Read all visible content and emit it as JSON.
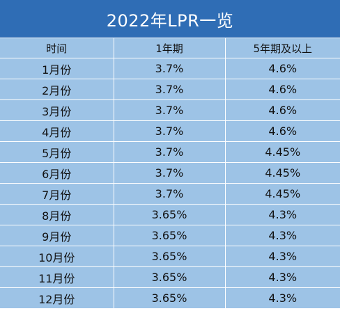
{
  "title": "2022年LPR一览",
  "headers": [
    "时间",
    "1年期",
    "5年期及以上"
  ],
  "rows": [
    [
      "1月份",
      "3.7%",
      "4.6%"
    ],
    [
      "2月份",
      "3.7%",
      "4.6%"
    ],
    [
      "3月份",
      "3.7%",
      "4.6%"
    ],
    [
      "4月份",
      "3.7%",
      "4.6%"
    ],
    [
      "5月份",
      "3.7%",
      "4.45%"
    ],
    [
      "6月份",
      "3.7%",
      "4.45%"
    ],
    [
      "7月份",
      "3.7%",
      "4.45%"
    ],
    [
      "8月份",
      "3.65%",
      "4.3%"
    ],
    [
      "9月份",
      "3.65%",
      "4.3%"
    ],
    [
      "10月份",
      "3.65%",
      "4.3%"
    ],
    [
      "11月份",
      "3.65%",
      "4.3%"
    ],
    [
      "12月份",
      "3.65%",
      "4.3%"
    ]
  ],
  "colors": {
    "title_background": "#2f6db5",
    "table_background": "#9dc3e6",
    "grid_line": "#ffffff"
  }
}
